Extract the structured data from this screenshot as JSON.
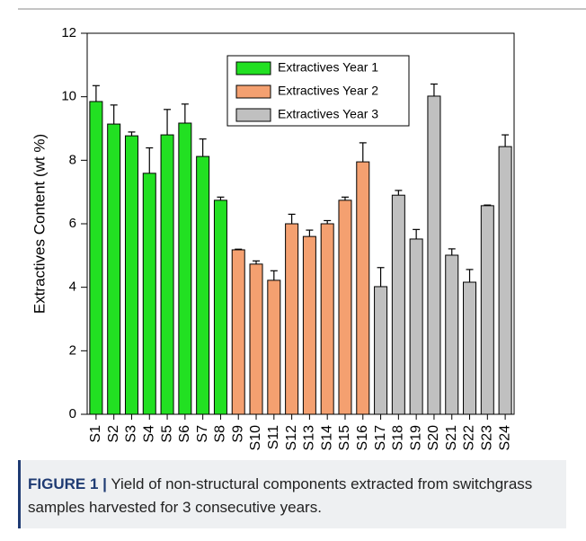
{
  "chart_data": {
    "type": "bar",
    "y_label": "Extractives Content (wt %)",
    "categories": [
      "S1",
      "S2",
      "S3",
      "S4",
      "S5",
      "S6",
      "S7",
      "S8",
      "S9",
      "S10",
      "S11",
      "S12",
      "S13",
      "S14",
      "S15",
      "S16",
      "S17",
      "S18",
      "S19",
      "S20",
      "S21",
      "S22",
      "S23",
      "S24"
    ],
    "series": [
      {
        "name": "Extractives Year 1",
        "color": "#22e022",
        "values": [
          9.85,
          9.14,
          8.77,
          7.59,
          8.8,
          9.17,
          8.12,
          6.74,
          null,
          null,
          null,
          null,
          null,
          null,
          null,
          null,
          null,
          null,
          null,
          null,
          null,
          null,
          null,
          null
        ],
        "errors": [
          0.5,
          0.6,
          0.12,
          0.8,
          0.8,
          0.6,
          0.55,
          0.1,
          null,
          null,
          null,
          null,
          null,
          null,
          null,
          null,
          null,
          null,
          null,
          null,
          null,
          null,
          null,
          null
        ]
      },
      {
        "name": "Extractives Year 2",
        "color": "#f4a070",
        "values": [
          null,
          null,
          null,
          null,
          null,
          null,
          null,
          null,
          5.18,
          4.73,
          4.22,
          6.0,
          5.6,
          6.0,
          6.74,
          7.95,
          null,
          null,
          null,
          null,
          null,
          null,
          null,
          null
        ],
        "errors": [
          null,
          null,
          null,
          null,
          null,
          null,
          null,
          null,
          0.02,
          0.1,
          0.3,
          0.3,
          0.2,
          0.1,
          0.1,
          0.6,
          null,
          null,
          null,
          null,
          null,
          null,
          null,
          null
        ]
      },
      {
        "name": "Extractives Year 3",
        "color": "#c0c0c0",
        "values": [
          null,
          null,
          null,
          null,
          null,
          null,
          null,
          null,
          null,
          null,
          null,
          null,
          null,
          null,
          null,
          null,
          4.02,
          6.9,
          5.52,
          10.02,
          5.01,
          4.16,
          6.57,
          8.43
        ],
        "errors": [
          null,
          null,
          null,
          null,
          null,
          null,
          null,
          null,
          null,
          null,
          null,
          null,
          null,
          null,
          null,
          null,
          0.6,
          0.15,
          0.3,
          0.38,
          0.2,
          0.4,
          0.02,
          0.37
        ]
      }
    ],
    "ylim": [
      0,
      12
    ],
    "yticks": [
      0,
      2,
      4,
      6,
      8,
      10,
      12
    ]
  },
  "caption": {
    "label": "FIGURE 1 |",
    "text": "Yield of non-structural components extracted from switchgrass samples harvested for 3 consecutive years."
  }
}
